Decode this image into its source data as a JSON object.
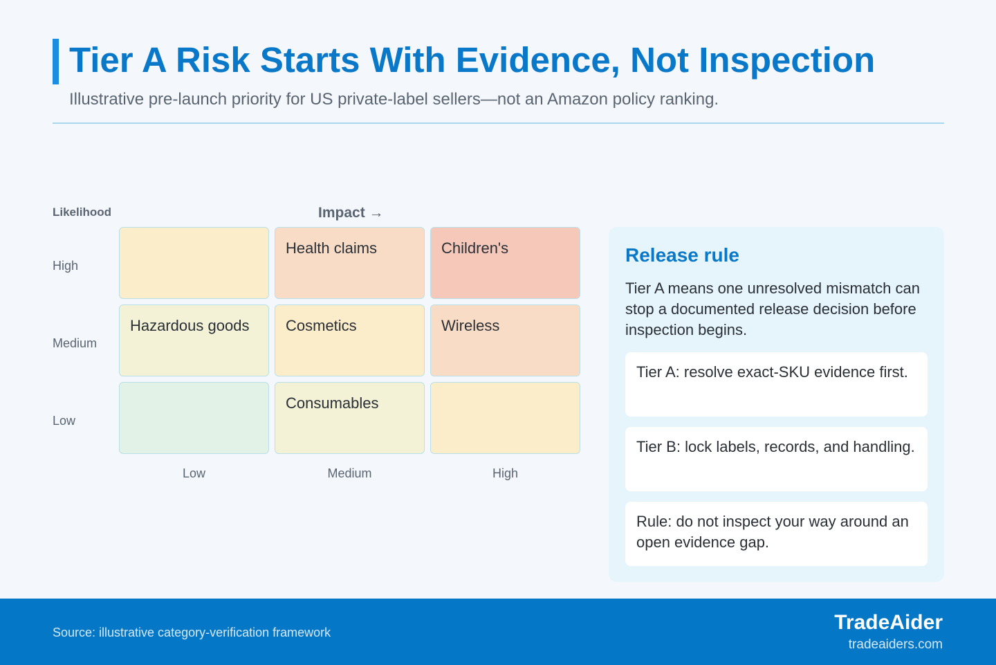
{
  "header": {
    "title": "Tier A Risk Starts With Evidence, Not Inspection",
    "subtitle": "Illustrative pre-launch priority for US private-label sellers—not an Amazon policy ranking."
  },
  "matrix": {
    "y_axis_title": "Likelihood",
    "x_axis_title": "Impact →",
    "rows": [
      "High",
      "Medium",
      "Low"
    ],
    "columns": [
      "Low",
      "Medium",
      "High"
    ],
    "cells": {
      "high_low": "",
      "high_medium": "Health claims",
      "high_high": "Children's",
      "medium_low": "Hazardous goods",
      "medium_medium": "Cosmetics",
      "medium_high": "Wireless",
      "low_low": "",
      "low_medium": "Consumables",
      "low_high": ""
    },
    "colors": {
      "green": "#e2f2e7",
      "yellow_green": "#f3f2d7",
      "yellow": "#fbedca",
      "peach": "#f9dcc5",
      "salmon": "#f6c8ba"
    }
  },
  "panel": {
    "title": "Release rule",
    "body": "Tier A means one unresolved mismatch can stop a documented release decision before inspection begins.",
    "rules": [
      "Tier A: resolve exact-SKU evidence first.",
      "Tier B: lock labels, records, and handling.",
      "Rule: do not inspect your way around an open evidence gap."
    ]
  },
  "footer": {
    "source": "Source: illustrative category-verification framework",
    "brand": "TradeAider",
    "url": "tradeaiders.com"
  }
}
